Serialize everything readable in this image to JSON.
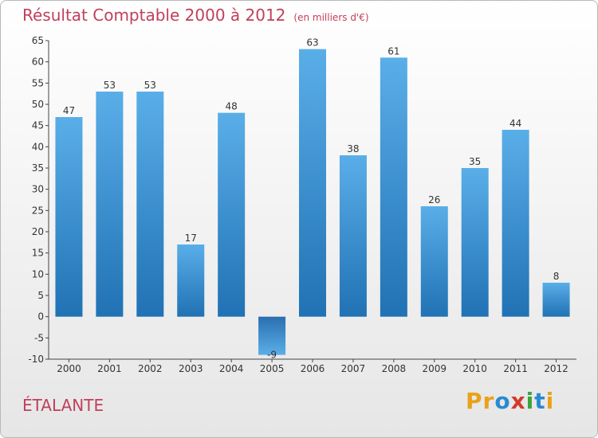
{
  "title": "Résultat Comptable 2000 à 2012",
  "unit": "(en milliers d'€)",
  "commune": "ÉTALANTE",
  "logo": {
    "letters": [
      "P",
      "r",
      "o",
      "x",
      "i",
      "t",
      "i"
    ],
    "colors": [
      "#e8a21a",
      "#e8a21a",
      "#2a8ad2",
      "#d23b2a",
      "#3aa43a",
      "#2a8ad2",
      "#e8a21a"
    ]
  },
  "colors": {
    "title": "#c0405a",
    "bar_top": "#5aaee8",
    "bar_bottom": "#2072b4"
  },
  "chart_data": {
    "type": "bar",
    "title": "Résultat Comptable 2000 à 2012",
    "xlabel": "",
    "ylabel": "",
    "categories": [
      "2000",
      "2001",
      "2002",
      "2003",
      "2004",
      "2005",
      "2006",
      "2007",
      "2008",
      "2009",
      "2010",
      "2011",
      "2012"
    ],
    "values": [
      47,
      53,
      53,
      17,
      48,
      -9,
      63,
      38,
      61,
      26,
      35,
      44,
      8
    ],
    "ylim": [
      -10,
      65
    ],
    "yticks": [
      65,
      60,
      55,
      50,
      45,
      40,
      35,
      30,
      25,
      20,
      15,
      10,
      5,
      0,
      -5,
      -10
    ],
    "grid": false
  }
}
